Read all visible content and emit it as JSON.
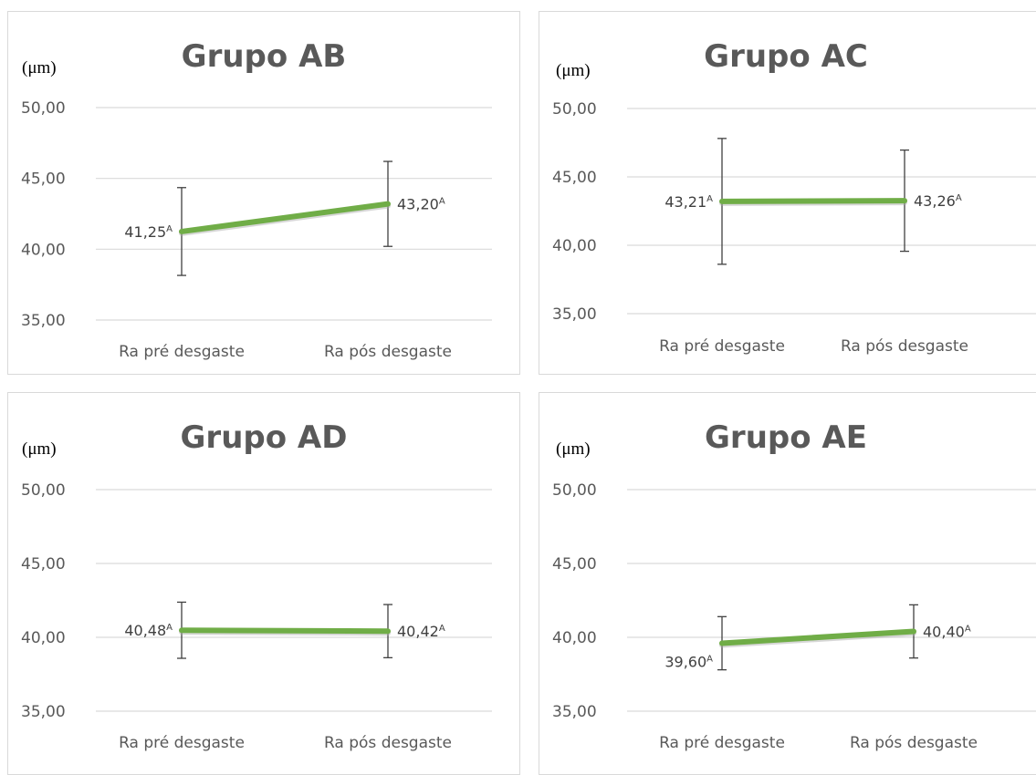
{
  "unit_label": "(μm)",
  "chart_data": [
    {
      "type": "line",
      "title": "Grupo AB",
      "categories": [
        "Ra pré desgaste",
        "Ra pós desgaste"
      ],
      "ylim": [
        35,
        50
      ],
      "yticks": [
        "35,00",
        "40,00",
        "45,00",
        "50,00"
      ],
      "grid": true,
      "series": [
        {
          "values": [
            41.25,
            43.2
          ],
          "errors": [
            3.1,
            3.0
          ],
          "labels": [
            "41,25",
            "43,20"
          ],
          "superscripts": [
            "A",
            "A"
          ],
          "color": "#70ad47"
        }
      ]
    },
    {
      "type": "line",
      "title": "Grupo AC",
      "categories": [
        "Ra pré desgaste",
        "Ra pós desgaste"
      ],
      "ylim": [
        35,
        50
      ],
      "yticks": [
        "35,00",
        "40,00",
        "45,00",
        "50,00"
      ],
      "grid": true,
      "series": [
        {
          "values": [
            43.21,
            43.26
          ],
          "errors": [
            4.6,
            3.7
          ],
          "labels": [
            "43,21",
            "43,26"
          ],
          "superscripts": [
            "A",
            "A"
          ],
          "color": "#70ad47"
        }
      ]
    },
    {
      "type": "line",
      "title": "Grupo AD",
      "categories": [
        "Ra pré desgaste",
        "Ra pós desgaste"
      ],
      "ylim": [
        35,
        50
      ],
      "yticks": [
        "35,00",
        "40,00",
        "45,00",
        "50,00"
      ],
      "grid": true,
      "series": [
        {
          "values": [
            40.48,
            40.42
          ],
          "errors": [
            1.9,
            1.8
          ],
          "labels": [
            "40,48",
            "40,42"
          ],
          "superscripts": [
            "A",
            "A"
          ],
          "color": "#70ad47"
        }
      ]
    },
    {
      "type": "line",
      "title": "Grupo AE",
      "categories": [
        "Ra pré desgaste",
        "Ra pós desgaste"
      ],
      "ylim": [
        35,
        50
      ],
      "yticks": [
        "35,00",
        "40,00",
        "45,00",
        "50,00"
      ],
      "grid": true,
      "series": [
        {
          "values": [
            39.6,
            40.4
          ],
          "errors": [
            1.8,
            1.8
          ],
          "labels": [
            "39,60",
            "40,40"
          ],
          "superscripts": [
            "A",
            "A"
          ],
          "color": "#70ad47"
        }
      ]
    }
  ]
}
